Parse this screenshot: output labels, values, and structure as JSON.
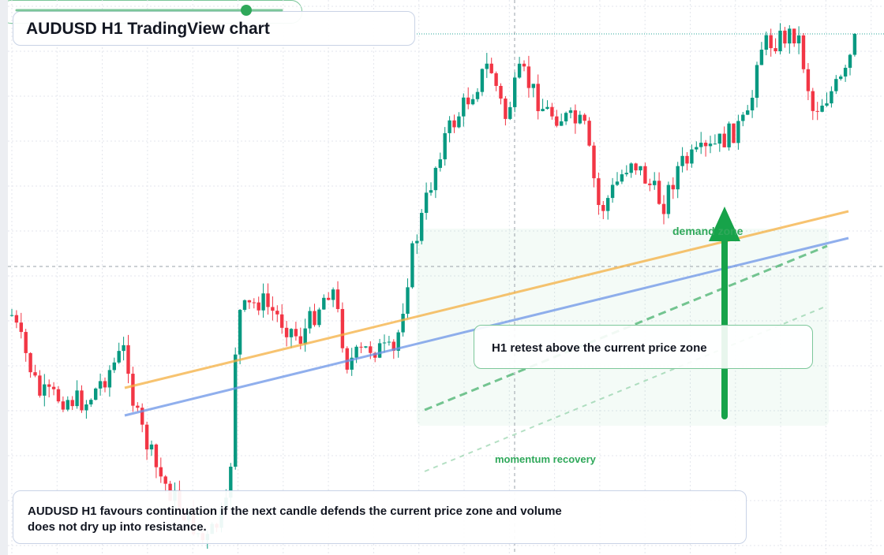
{
  "title": "AUDUSD H1 TradingView chart",
  "demand_zone_label": "demand zone",
  "annotation": "H1 retest above the current price zone",
  "slider": {
    "label": "momentum recovery"
  },
  "caption": "AUDUSD H1 favours continuation if the next candle defends the current price zone and volume does not dry up into resistance."
}
